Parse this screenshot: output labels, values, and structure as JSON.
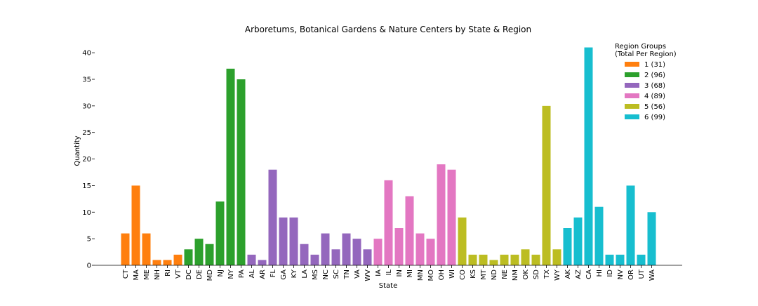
{
  "chart_data": {
    "type": "bar",
    "title": "Arboretums, Botanical Gardens & Nature Centers by State & Region",
    "xlabel": "State",
    "ylabel": "Quantity",
    "ylim": [
      0,
      42
    ],
    "yticks": [
      0,
      5,
      10,
      15,
      20,
      25,
      30,
      35,
      40
    ],
    "grid": false,
    "legend_position": "top-right",
    "legend_title": "Region Groups\n(Total Per Region)",
    "groups": [
      {
        "label": "1 (31)",
        "color": "#ff7f0e",
        "categories": [
          "CT",
          "MA",
          "ME",
          "NH",
          "RI",
          "VT"
        ],
        "values": [
          6,
          15,
          6,
          1,
          1,
          2
        ]
      },
      {
        "label": "2 (96)",
        "color": "#2ca02c",
        "categories": [
          "DC",
          "DE",
          "MD",
          "NJ",
          "NY",
          "PA"
        ],
        "values": [
          3,
          5,
          4,
          12,
          37,
          35
        ]
      },
      {
        "label": "3 (68)",
        "color": "#9467bd",
        "categories": [
          "AL",
          "AR",
          "FL",
          "GA",
          "KY",
          "LA",
          "MS",
          "NC",
          "SC",
          "TN",
          "VA",
          "WV"
        ],
        "values": [
          2,
          1,
          18,
          9,
          9,
          4,
          2,
          6,
          3,
          6,
          5,
          3
        ]
      },
      {
        "label": "4 (89)",
        "color": "#e377c2",
        "categories": [
          "IA",
          "IL",
          "IN",
          "MI",
          "MN",
          "MO",
          "OH",
          "WI"
        ],
        "values": [
          5,
          16,
          7,
          13,
          6,
          5,
          19,
          18
        ]
      },
      {
        "label": "5 (56)",
        "color": "#bcbd22",
        "categories": [
          "CO",
          "KS",
          "MT",
          "ND",
          "NE",
          "NM",
          "OK",
          "SD",
          "TX",
          "WY"
        ],
        "values": [
          9,
          2,
          2,
          1,
          2,
          2,
          3,
          2,
          30,
          3
        ]
      },
      {
        "label": "6 (99)",
        "color": "#17becf",
        "categories": [
          "AK",
          "AZ",
          "CA",
          "HI",
          "ID",
          "NV",
          "OR",
          "UT",
          "WA"
        ],
        "values": [
          7,
          9,
          41,
          11,
          2,
          2,
          15,
          2,
          10
        ]
      }
    ]
  }
}
